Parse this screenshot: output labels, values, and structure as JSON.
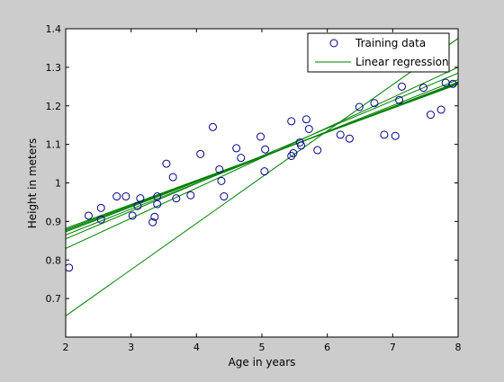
{
  "colors": {
    "figure_background": "#cccccc",
    "axes_background": "#ffffff",
    "training_marker": "#00008b",
    "regression_line": "#008000"
  },
  "chart_data": {
    "type": "scatter",
    "title": "",
    "xlabel": "Age in years",
    "ylabel": "Height in meters",
    "xlim": [
      2,
      8
    ],
    "ylim": [
      0.6,
      1.4
    ],
    "xticks": [
      2,
      3,
      4,
      5,
      6,
      7,
      8
    ],
    "yticks": [
      0.6,
      0.7,
      0.8,
      0.9,
      1.0,
      1.1,
      1.2,
      1.3,
      1.4
    ],
    "xtick_labels": [
      "2",
      "3",
      "4",
      "5",
      "6",
      "7",
      "8"
    ],
    "ytick_labels": [
      "",
      "0.7",
      "0.8",
      "0.9",
      "1",
      "1.1",
      "1.2",
      "1.3",
      "1.4"
    ],
    "grid": false,
    "legend_position": "top-right",
    "legend": [
      {
        "label": "Training data",
        "marker": "circle"
      },
      {
        "label": "Linear regression",
        "marker": "line"
      }
    ],
    "series": [
      {
        "name": "Training data",
        "kind": "scatter",
        "marker": "open-circle",
        "x": [
          2.05,
          2.35,
          2.54,
          2.54,
          2.78,
          2.92,
          3.02,
          3.1,
          3.14,
          3.33,
          3.36,
          3.4,
          3.4,
          3.54,
          3.64,
          3.69,
          3.91,
          4.06,
          4.25,
          4.35,
          4.38,
          4.42,
          4.61,
          4.68,
          4.98,
          5.04,
          5.05,
          5.45,
          5.45,
          5.48,
          5.58,
          5.6,
          5.68,
          5.72,
          5.85,
          6.2,
          6.34,
          6.49,
          6.72,
          6.87,
          7.04,
          7.1,
          7.14,
          7.47,
          7.58,
          7.74,
          7.81,
          7.92
        ],
        "y": [
          0.78,
          0.915,
          0.905,
          0.935,
          0.965,
          0.965,
          0.915,
          0.94,
          0.96,
          0.898,
          0.912,
          0.945,
          0.965,
          1.05,
          1.015,
          0.96,
          0.968,
          1.075,
          1.145,
          1.035,
          1.005,
          0.965,
          1.09,
          1.065,
          1.12,
          1.03,
          1.087,
          1.07,
          1.16,
          1.077,
          1.105,
          1.097,
          1.165,
          1.14,
          1.085,
          1.125,
          1.115,
          1.197,
          1.207,
          1.125,
          1.122,
          1.215,
          1.25,
          1.247,
          1.177,
          1.19,
          1.26,
          1.257
        ]
      },
      {
        "name": "Linear regression",
        "kind": "lines",
        "lines": [
          {
            "x": [
              2,
              8
            ],
            "y": [
              0.655,
              1.375
            ]
          },
          {
            "x": [
              2,
              8
            ],
            "y": [
              0.83,
              1.3
            ]
          },
          {
            "x": [
              2,
              8
            ],
            "y": [
              0.855,
              1.285
            ]
          },
          {
            "x": [
              2,
              8
            ],
            "y": [
              0.865,
              1.268
            ]
          },
          {
            "x": [
              2,
              8
            ],
            "y": [
              0.873,
              1.262
            ]
          },
          {
            "x": [
              2,
              8
            ],
            "y": [
              0.876,
              1.26
            ]
          },
          {
            "x": [
              2,
              8
            ],
            "y": [
              0.879,
              1.258
            ]
          },
          {
            "x": [
              2,
              8
            ],
            "y": [
              0.882,
              1.256
            ]
          }
        ]
      }
    ]
  }
}
